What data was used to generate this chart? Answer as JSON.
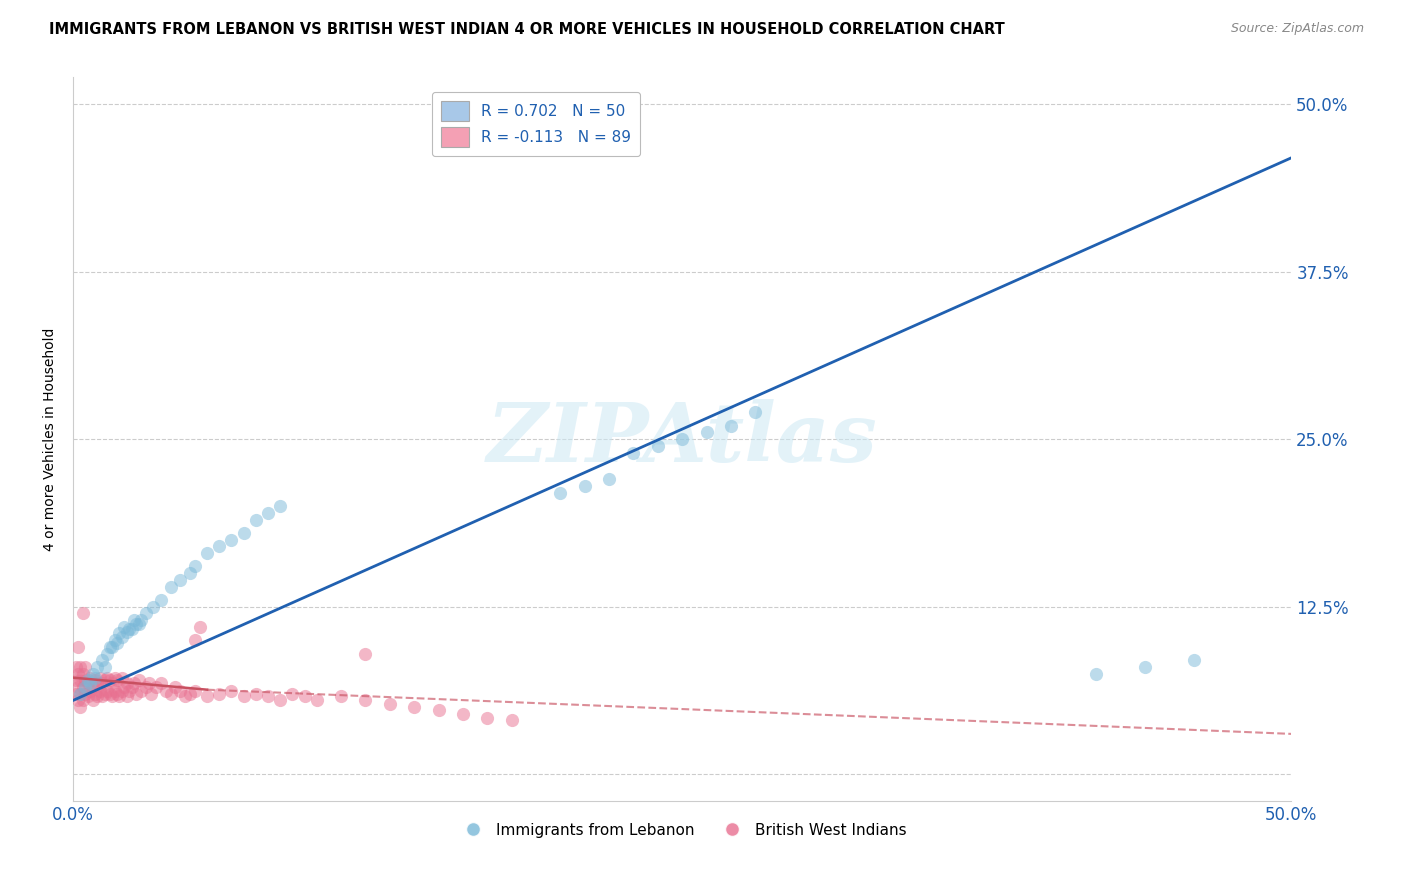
{
  "title": "IMMIGRANTS FROM LEBANON VS BRITISH WEST INDIAN 4 OR MORE VEHICLES IN HOUSEHOLD CORRELATION CHART",
  "source": "Source: ZipAtlas.com",
  "ylabel": "4 or more Vehicles in Household",
  "xmin": 0.0,
  "xmax": 0.5,
  "ymin": -0.02,
  "ymax": 0.52,
  "xticks": [
    0.0,
    0.125,
    0.25,
    0.375,
    0.5
  ],
  "xtick_labels": [
    "0.0%",
    "",
    "",
    "",
    "50.0%"
  ],
  "yticks": [
    0.0,
    0.125,
    0.25,
    0.375,
    0.5
  ],
  "ytick_labels": [
    "",
    "12.5%",
    "25.0%",
    "37.5%",
    "50.0%"
  ],
  "legend1_label": "R = 0.702   N = 50",
  "legend2_label": "R = -0.113   N = 89",
  "legend1_color": "#a8c8e8",
  "legend2_color": "#f4a0b4",
  "blue_color": "#7ab8d8",
  "pink_color": "#e87090",
  "trendline_blue": "#2060b0",
  "trendline_pink": "#c85060",
  "watermark": "ZIPAtlas",
  "background_color": "#ffffff",
  "blue_scatter": {
    "x": [
      0.003,
      0.005,
      0.006,
      0.007,
      0.008,
      0.009,
      0.01,
      0.012,
      0.013,
      0.015,
      0.017,
      0.019,
      0.021,
      0.023,
      0.025,
      0.027,
      0.03,
      0.033,
      0.036,
      0.04,
      0.044,
      0.048,
      0.05,
      0.055,
      0.06,
      0.065,
      0.07,
      0.075,
      0.08,
      0.085,
      0.014,
      0.016,
      0.018,
      0.02,
      0.022,
      0.024,
      0.026,
      0.028,
      0.2,
      0.21,
      0.22,
      0.23,
      0.24,
      0.25,
      0.26,
      0.27,
      0.28,
      0.42,
      0.44,
      0.46
    ],
    "y": [
      0.06,
      0.065,
      0.07,
      0.068,
      0.075,
      0.072,
      0.08,
      0.085,
      0.08,
      0.095,
      0.1,
      0.105,
      0.11,
      0.108,
      0.115,
      0.112,
      0.12,
      0.125,
      0.13,
      0.14,
      0.145,
      0.15,
      0.155,
      0.165,
      0.17,
      0.175,
      0.18,
      0.19,
      0.195,
      0.2,
      0.09,
      0.095,
      0.098,
      0.102,
      0.106,
      0.108,
      0.112,
      0.115,
      0.21,
      0.215,
      0.22,
      0.24,
      0.245,
      0.25,
      0.255,
      0.26,
      0.27,
      0.075,
      0.08,
      0.085
    ]
  },
  "pink_scatter": {
    "x": [
      0.001,
      0.001,
      0.001,
      0.002,
      0.002,
      0.002,
      0.003,
      0.003,
      0.003,
      0.003,
      0.004,
      0.004,
      0.004,
      0.005,
      0.005,
      0.005,
      0.006,
      0.006,
      0.007,
      0.007,
      0.008,
      0.008,
      0.009,
      0.009,
      0.01,
      0.01,
      0.011,
      0.011,
      0.012,
      0.012,
      0.013,
      0.013,
      0.014,
      0.014,
      0.015,
      0.015,
      0.016,
      0.016,
      0.017,
      0.017,
      0.018,
      0.018,
      0.019,
      0.02,
      0.02,
      0.021,
      0.022,
      0.022,
      0.023,
      0.024,
      0.025,
      0.026,
      0.027,
      0.028,
      0.03,
      0.031,
      0.032,
      0.034,
      0.036,
      0.038,
      0.04,
      0.042,
      0.044,
      0.046,
      0.048,
      0.05,
      0.055,
      0.06,
      0.065,
      0.07,
      0.075,
      0.08,
      0.085,
      0.09,
      0.095,
      0.1,
      0.11,
      0.12,
      0.13,
      0.14,
      0.15,
      0.16,
      0.17,
      0.18,
      0.05,
      0.052,
      0.12,
      0.002,
      0.004
    ],
    "y": [
      0.06,
      0.07,
      0.08,
      0.055,
      0.065,
      0.075,
      0.05,
      0.06,
      0.07,
      0.08,
      0.055,
      0.065,
      0.075,
      0.06,
      0.07,
      0.08,
      0.058,
      0.068,
      0.062,
      0.072,
      0.055,
      0.065,
      0.06,
      0.07,
      0.058,
      0.068,
      0.062,
      0.072,
      0.058,
      0.068,
      0.06,
      0.07,
      0.062,
      0.072,
      0.06,
      0.07,
      0.058,
      0.068,
      0.062,
      0.072,
      0.06,
      0.07,
      0.058,
      0.062,
      0.072,
      0.065,
      0.058,
      0.068,
      0.062,
      0.065,
      0.068,
      0.06,
      0.07,
      0.062,
      0.065,
      0.068,
      0.06,
      0.065,
      0.068,
      0.062,
      0.06,
      0.065,
      0.062,
      0.058,
      0.06,
      0.062,
      0.058,
      0.06,
      0.062,
      0.058,
      0.06,
      0.058,
      0.055,
      0.06,
      0.058,
      0.055,
      0.058,
      0.055,
      0.052,
      0.05,
      0.048,
      0.045,
      0.042,
      0.04,
      0.1,
      0.11,
      0.09,
      0.095,
      0.12
    ]
  },
  "blue_trendline": {
    "x_start": 0.0,
    "x_end": 0.5,
    "y_start": 0.055,
    "y_end": 0.46
  },
  "pink_trendline_solid": {
    "x_start": 0.0,
    "x_end": 0.055,
    "y_start": 0.072,
    "y_end": 0.063
  },
  "pink_trendline_dashed": {
    "x_start": 0.055,
    "x_end": 0.5,
    "y_start": 0.063,
    "y_end": 0.03
  }
}
